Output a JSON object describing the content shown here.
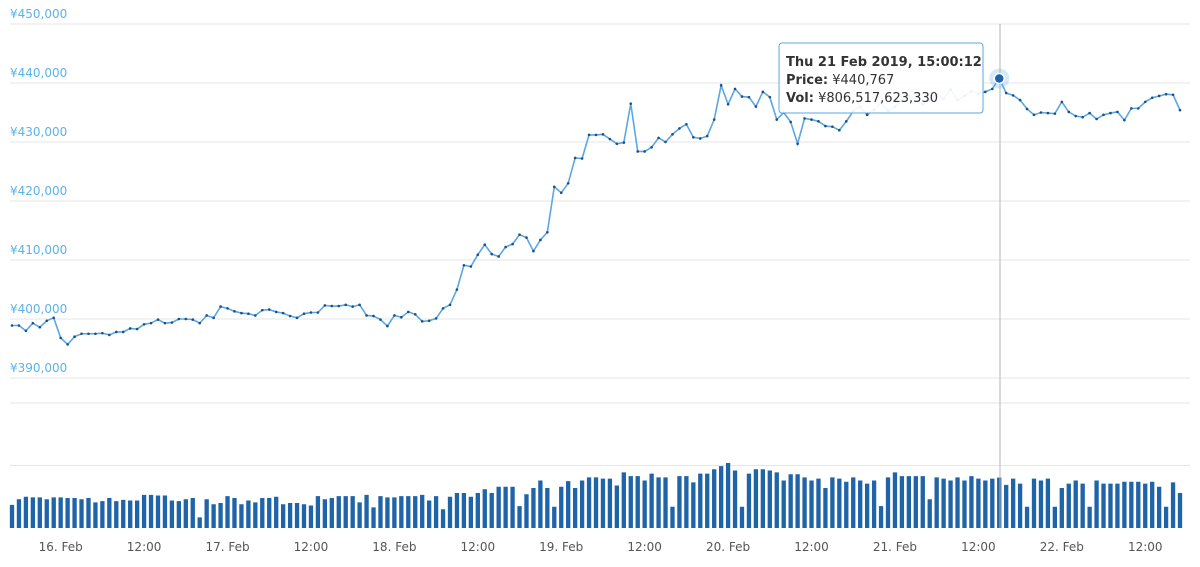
{
  "chart_data": {
    "type": "line",
    "x": [
      "15 Feb 17:00",
      "15 Feb 18:00",
      "15 Feb 19:00",
      "15 Feb 20:00",
      "15 Feb 21:00",
      "15 Feb 22:00",
      "15 Feb 23:00",
      "16 Feb 00:00",
      "16 Feb 01:00",
      "16 Feb 02:00",
      "16 Feb 03:00",
      "16 Feb 04:00",
      "16 Feb 05:00",
      "16 Feb 06:00",
      "16 Feb 07:00",
      "16 Feb 08:00",
      "16 Feb 09:00",
      "16 Feb 10:00",
      "16 Feb 11:00",
      "16 Feb 12:00",
      "16 Feb 13:00",
      "16 Feb 14:00",
      "16 Feb 15:00",
      "16 Feb 16:00",
      "16 Feb 17:00",
      "16 Feb 18:00",
      "16 Feb 19:00",
      "16 Feb 20:00",
      "16 Feb 21:00",
      "16 Feb 22:00",
      "16 Feb 23:00",
      "17 Feb 00:00",
      "17 Feb 01:00",
      "17 Feb 02:00",
      "17 Feb 03:00",
      "17 Feb 04:00",
      "17 Feb 05:00",
      "17 Feb 06:00",
      "17 Feb 07:00",
      "17 Feb 08:00",
      "17 Feb 09:00",
      "17 Feb 10:00",
      "17 Feb 11:00",
      "17 Feb 12:00",
      "17 Feb 13:00",
      "17 Feb 14:00",
      "17 Feb 15:00",
      "17 Feb 16:00",
      "17 Feb 17:00",
      "17 Feb 18:00",
      "17 Feb 19:00",
      "17 Feb 20:00",
      "17 Feb 21:00",
      "17 Feb 22:00",
      "17 Feb 23:00",
      "18 Feb 00:00",
      "18 Feb 01:00",
      "18 Feb 02:00",
      "18 Feb 03:00",
      "18 Feb 04:00",
      "18 Feb 05:00",
      "18 Feb 06:00",
      "18 Feb 07:00",
      "18 Feb 08:00",
      "18 Feb 09:00",
      "18 Feb 10:00",
      "18 Feb 11:00",
      "18 Feb 12:00",
      "18 Feb 13:00",
      "18 Feb 14:00",
      "18 Feb 15:00",
      "18 Feb 16:00",
      "18 Feb 17:00",
      "18 Feb 18:00",
      "18 Feb 19:00",
      "18 Feb 20:00",
      "18 Feb 21:00",
      "18 Feb 22:00",
      "18 Feb 23:00",
      "19 Feb 00:00",
      "19 Feb 01:00",
      "19 Feb 02:00",
      "19 Feb 03:00",
      "19 Feb 04:00",
      "19 Feb 05:00",
      "19 Feb 06:00",
      "19 Feb 07:00",
      "19 Feb 08:00",
      "19 Feb 09:00",
      "19 Feb 10:00",
      "19 Feb 11:00",
      "19 Feb 12:00",
      "19 Feb 13:00",
      "19 Feb 14:00",
      "19 Feb 15:00",
      "19 Feb 16:00",
      "19 Feb 17:00",
      "19 Feb 18:00",
      "19 Feb 19:00",
      "19 Feb 20:00",
      "19 Feb 21:00",
      "19 Feb 22:00",
      "19 Feb 23:00",
      "20 Feb 00:00",
      "20 Feb 01:00",
      "20 Feb 02:00",
      "20 Feb 03:00",
      "20 Feb 04:00",
      "20 Feb 05:00",
      "20 Feb 06:00",
      "20 Feb 07:00",
      "20 Feb 08:00",
      "20 Feb 09:00",
      "20 Feb 10:00",
      "20 Feb 11:00",
      "20 Feb 12:00",
      "20 Feb 13:00",
      "20 Feb 14:00",
      "20 Feb 15:00",
      "20 Feb 16:00",
      "20 Feb 17:00",
      "20 Feb 18:00",
      "20 Feb 19:00",
      "20 Feb 20:00",
      "20 Feb 21:00",
      "20 Feb 22:00",
      "20 Feb 23:00",
      "21 Feb 00:00",
      "21 Feb 01:00",
      "21 Feb 02:00",
      "21 Feb 03:00",
      "21 Feb 04:00",
      "21 Feb 05:00",
      "21 Feb 06:00",
      "21 Feb 07:00",
      "21 Feb 08:00",
      "21 Feb 09:00",
      "21 Feb 10:00",
      "21 Feb 11:00",
      "21 Feb 12:00",
      "21 Feb 13:00",
      "21 Feb 14:00",
      "21 Feb 15:00",
      "21 Feb 16:00",
      "21 Feb 17:00",
      "21 Feb 18:00",
      "21 Feb 19:00",
      "21 Feb 20:00",
      "21 Feb 21:00",
      "21 Feb 22:00",
      "21 Feb 23:00",
      "22 Feb 00:00",
      "22 Feb 01:00",
      "22 Feb 02:00",
      "22 Feb 03:00",
      "22 Feb 04:00",
      "22 Feb 05:00",
      "22 Feb 06:00",
      "22 Feb 07:00",
      "22 Feb 08:00",
      "22 Feb 09:00",
      "22 Feb 10:00",
      "22 Feb 11:00",
      "22 Feb 12:00",
      "22 Feb 13:00",
      "22 Feb 14:00",
      "22 Feb 15:00",
      "22 Feb 16:00",
      "22 Feb 17:00"
    ],
    "series": [
      {
        "type": "line",
        "color": "#5ba7e3",
        "values": [
          398900,
          398900,
          398000,
          399300,
          398600,
          399700,
          400200,
          396800,
          395700,
          397000,
          397500,
          397500,
          397500,
          397600,
          397300,
          397800,
          397800,
          398400,
          398300,
          399100,
          399300,
          399900,
          399300,
          399400,
          400000,
          400000,
          399900,
          399300,
          400600,
          400200,
          402100,
          401800,
          401300,
          401000,
          400900,
          400600,
          401500,
          401600,
          401200,
          401000,
          400500,
          400200,
          400900,
          401100,
          401100,
          402300,
          402200,
          402200,
          402400,
          402100,
          402400,
          400600,
          400500,
          399900,
          398800,
          400600,
          400300,
          401200,
          400800,
          399600,
          399700,
          400100,
          401800,
          402400,
          405000,
          409100,
          408900,
          410900,
          412600,
          411000,
          410600,
          412200,
          412700,
          414300,
          413800,
          411500,
          413400,
          414700,
          422400,
          421400,
          423000,
          427300,
          427200,
          431200,
          431200,
          431300,
          430500,
          429700,
          429900,
          436500,
          428400,
          428400,
          429100,
          430700,
          430000,
          431300,
          432300,
          433000,
          430800,
          430600,
          431000,
          433800,
          439600,
          436400,
          439000,
          437700,
          437600,
          436000,
          438500,
          437600,
          433800,
          435000,
          433400,
          429700,
          434000,
          433800,
          433500,
          432700,
          432600,
          432000,
          433500,
          435200,
          436000,
          434600,
          435500,
          436600,
          435200,
          436000,
          436900,
          437800,
          437000,
          436400,
          437100,
          438100,
          437300,
          438900,
          437100,
          437800,
          438600,
          438200,
          438500,
          439000,
          440767,
          438300,
          437900,
          437100,
          435600,
          434600,
          435000,
          434900,
          434800,
          436800,
          435100,
          434400,
          434200,
          434900,
          433900,
          434600,
          434900,
          435100,
          433700,
          435700,
          435700,
          436800,
          437500,
          437800,
          438100,
          438000,
          435400
        ]
      },
      {
        "type": "bar",
        "axis": "y2",
        "color": "#1f63a8",
        "values": [
          370000000000.0,
          460000000000.0,
          500000000000.0,
          490000000000.0,
          490000000000.0,
          460000000000.0,
          490000000000.0,
          490000000000.0,
          480000000000.0,
          480000000000.0,
          460000000000.0,
          480000000000.0,
          410000000000.0,
          430000000000.0,
          480000000000.0,
          430000000000.0,
          450000000000.0,
          440000000000.0,
          440000000000.0,
          530000000000.0,
          530000000000.0,
          520000000000.0,
          520000000000.0,
          440000000000.0,
          430000000000.0,
          460000000000.0,
          480000000000.0,
          170000000000.0,
          460000000000.0,
          380000000000.0,
          400000000000.0,
          510000000000.0,
          480000000000.0,
          380000000000.0,
          440000000000.0,
          410000000000.0,
          480000000000.0,
          480000000000.0,
          500000000000.0,
          380000000000.0,
          400000000000.0,
          400000000000.0,
          380000000000.0,
          360000000000.0,
          510000000000.0,
          460000000000.0,
          480000000000.0,
          510000000000.0,
          510000000000.0,
          510000000000.0,
          410000000000.0,
          530000000000.0,
          330000000000.0,
          510000000000.0,
          490000000000.0,
          490000000000.0,
          510000000000.0,
          510000000000.0,
          510000000000.0,
          530000000000.0,
          440000000000.0,
          510000000000.0,
          300000000000.0,
          500000000000.0,
          560000000000.0,
          560000000000.0,
          500000000000.0,
          560000000000.0,
          620000000000.0,
          560000000000.0,
          660000000000.0,
          660000000000.0,
          660000000000.0,
          350000000000.0,
          540000000000.0,
          640000000000.0,
          760000000000.0,
          640000000000.0,
          340000000000.0,
          660000000000.0,
          750000000000.0,
          640000000000.0,
          760000000000.0,
          810000000000.0,
          810000000000.0,
          790000000000.0,
          790000000000.0,
          680000000000.0,
          890000000000.0,
          830000000000.0,
          830000000000.0,
          760000000000.0,
          870000000000.0,
          810000000000.0,
          810000000000.0,
          340000000000.0,
          830000000000.0,
          830000000000.0,
          730000000000.0,
          870000000000.0,
          870000000000.0,
          940000000000.0,
          990000000000.0,
          1040000000000.0,
          920000000000.0,
          340000000000.0,
          870000000000.0,
          940000000000.0,
          940000000000.0,
          920000000000.0,
          890000000000.0,
          760000000000.0,
          860000000000.0,
          860000000000.0,
          810000000000.0,
          760000000000.0,
          790000000000.0,
          640000000000.0,
          810000000000.0,
          790000000000.0,
          740000000000.0,
          810000000000.0,
          760000000000.0,
          710000000000.0,
          760000000000.0,
          350000000000.0,
          810000000000.0,
          890000000000.0,
          830000000000.0,
          830000000000.0,
          830000000000.0,
          830000000000.0,
          460000000000.0,
          810000000000.0,
          790000000000.0,
          760000000000.0,
          810000000000.0,
          760000000000.0,
          830000000000.0,
          790000000000.0,
          760000000000.0,
          790000000000.0,
          806517623330,
          690000000000.0,
          790000000000.0,
          710000000000.0,
          340000000000.0,
          790000000000.0,
          760000000000.0,
          790000000000.0,
          340000000000.0,
          640000000000.0,
          710000000000.0,
          760000000000.0,
          710000000000.0,
          340000000000.0,
          760000000000.0,
          710000000000.0,
          710000000000.0,
          710000000000.0,
          740000000000.0,
          740000000000.0,
          740000000000.0,
          710000000000.0,
          740000000000.0,
          660000000000.0,
          340000000000.0,
          730000000000.0,
          560000000000.0
        ]
      }
    ],
    "ylim": [
      390000,
      450000
    ],
    "yticks": [
      {
        "value": 390000,
        "label": "¥390,000"
      },
      {
        "value": 400000,
        "label": "¥400,000"
      },
      {
        "value": 410000,
        "label": "¥410,000"
      },
      {
        "value": 420000,
        "label": "¥420,000"
      },
      {
        "value": 430000,
        "label": "¥430,000"
      },
      {
        "value": 440000,
        "label": "¥440,000"
      },
      {
        "value": 450000,
        "label": "¥450,000"
      }
    ],
    "y2lim": [
      0,
      2000000000000
    ],
    "y2ticks": [
      1000000000000,
      2000000000000
    ],
    "xticks": [
      {
        "value": "16 Feb 00:00",
        "label": "16. Feb"
      },
      {
        "value": "16 Feb 12:00",
        "label": "12:00"
      },
      {
        "value": "17 Feb 00:00",
        "label": "17. Feb"
      },
      {
        "value": "17 Feb 12:00",
        "label": "12:00"
      },
      {
        "value": "18 Feb 00:00",
        "label": "18. Feb"
      },
      {
        "value": "18 Feb 12:00",
        "label": "12:00"
      },
      {
        "value": "19 Feb 00:00",
        "label": "19. Feb"
      },
      {
        "value": "19 Feb 12:00",
        "label": "12:00"
      },
      {
        "value": "20 Feb 00:00",
        "label": "20. Feb"
      },
      {
        "value": "20 Feb 12:00",
        "label": "12:00"
      },
      {
        "value": "21 Feb 00:00",
        "label": "21. Feb"
      },
      {
        "value": "21 Feb 12:00",
        "label": "12:00"
      },
      {
        "value": "22 Feb 00:00",
        "label": "22. Feb"
      },
      {
        "value": "22 Feb 12:00",
        "label": "12:00"
      }
    ],
    "grid": true,
    "tooltip": {
      "title": "Thu 21 Feb 2019, 15:00:12",
      "rows": [
        {
          "label": "Price:",
          "value": "¥440,767"
        },
        {
          "label": "Vol:",
          "value": "¥806,517,623,330"
        }
      ]
    }
  }
}
